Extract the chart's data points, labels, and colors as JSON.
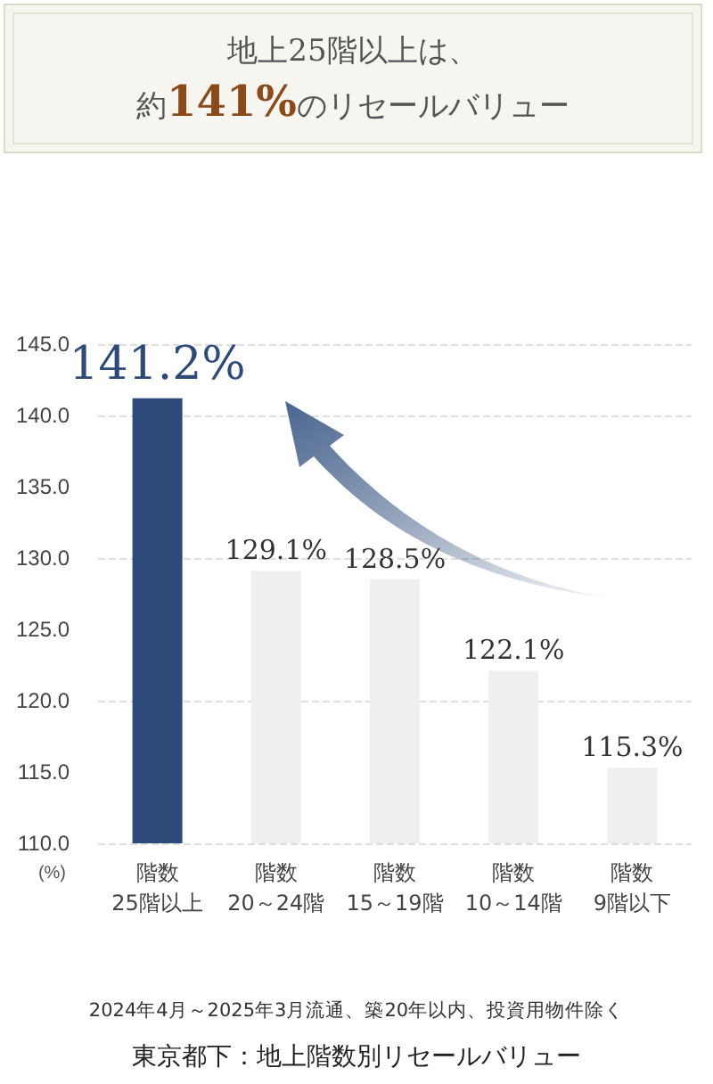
{
  "chart_data": {
    "type": "bar",
    "title": "地上25階以上は、約141%のリセールバリュー",
    "ylabel": "(%)",
    "categories": [
      "階数\n25階以上",
      "階数\n20～24階",
      "階数\n15～19階",
      "階数\n10～14階",
      "階数\n9階以下"
    ],
    "values": [
      141.2,
      129.1,
      128.5,
      122.1,
      115.3
    ],
    "colors": [
      "#2e4a78",
      "#efefef",
      "#efefef",
      "#efefef",
      "#efefef"
    ],
    "value_labels": [
      "141.2%",
      "129.1%",
      "128.5%",
      "122.1%",
      "115.3%"
    ],
    "ylim": [
      110,
      145
    ],
    "yticks": [
      {
        "value": 110,
        "label": "110.0"
      },
      {
        "value": 115,
        "label": "115.0"
      },
      {
        "value": 120,
        "label": "120.0"
      },
      {
        "value": 125,
        "label": "125.0"
      },
      {
        "value": 130,
        "label": "130.0"
      },
      {
        "value": 135,
        "label": "135.0"
      },
      {
        "value": 140,
        "label": "140.0"
      },
      {
        "value": 145,
        "label": "145.0"
      }
    ],
    "grid": "y",
    "annotations": [
      "2024年4月～2025年3月流通、築20年以内、投資用物件除く",
      "東京都下：地上階数別リセールバリュー"
    ]
  }
}
